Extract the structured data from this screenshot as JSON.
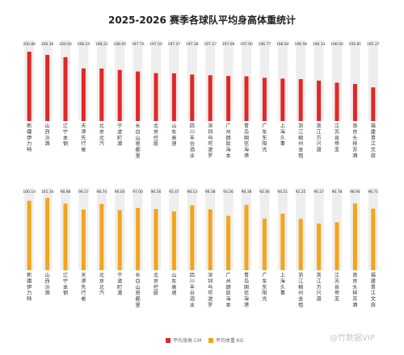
{
  "title": "2025-2026 赛季各球队平均身高体重统计",
  "watermark": "@竹数据VIP",
  "colors": {
    "height_bar": "#e32626",
    "weight_bar": "#f3a51c",
    "track": "#eeeeee"
  },
  "legend": {
    "height": "平均身高 CM",
    "weight": "平均体重 KG"
  },
  "chart_data": [
    {
      "type": "bar",
      "title": "",
      "categories": [
        "新疆伊力特",
        "山西汾酒",
        "辽宁本钢",
        "天津先行者",
        "北京北汽",
        "宁波町渡",
        "长白山恩都里",
        "北京控股",
        "山东高速",
        "四川丰谷酒业",
        "深圳马可波罗",
        "广州朗肽海本",
        "青岛国信海港",
        "广东东阳光",
        "上海久事",
        "浙江稠州金租",
        "浙江方兴渡",
        "江苏肯帝亚",
        "南京头排苏酒",
        "福建晋江文旅"
      ],
      "series": [
        {
          "name": "平均身高 CM",
          "values": [
            200.86,
            200.36,
            200.0,
            198.24,
            198.22,
            198.0,
            197.76,
            197.5,
            197.47,
            197.28,
            197.17,
            197.06,
            197.0,
            196.77,
            196.64,
            196.56,
            196.33,
            196.0,
            195.81,
            195.27
          ]
        }
      ]
    },
    {
      "type": "bar",
      "title": "",
      "categories": [
        "新疆伊力特",
        "山西汾酒",
        "辽宁本钢",
        "天津先行者",
        "北京北汽",
        "宁波町渡",
        "长白山恩都里",
        "北京控股",
        "山东高速",
        "四川丰谷酒业",
        "深圳马可波罗",
        "广州朗肽海本",
        "青岛国信海港",
        "广东东阳光",
        "上海久事",
        "浙江稠州金租",
        "浙江方兴渡",
        "江苏肯帝亚",
        "南京头排苏酒",
        "福建晋江文旅"
      ],
      "series": [
        {
          "name": "平均体重 KG",
          "values": [
            100.14,
            101.36,
            98.88,
            96.27,
            98.74,
            96.0,
            97.0,
            96.56,
            95.47,
            98.13,
            96.38,
            93.56,
            98.38,
            92.46,
            94.51,
            92.25,
            90.27,
            90.78,
            98.94,
            96.71
          ]
        }
      ]
    }
  ]
}
